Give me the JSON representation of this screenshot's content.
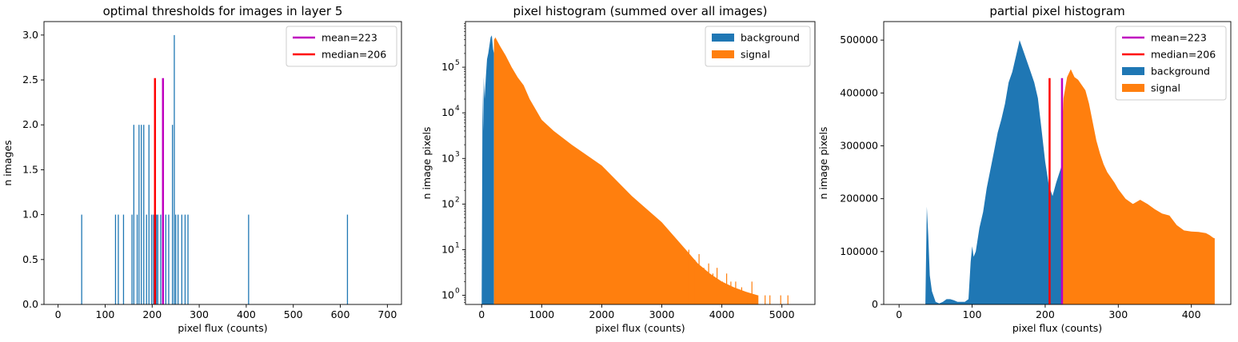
{
  "colors": {
    "background": "#1f77b4",
    "signal": "#ff7f0e",
    "mean": "#bf00bf",
    "median": "#ff0000",
    "axis": "#000000",
    "legend_border": "#cccccc"
  },
  "chart_data": [
    {
      "type": "bar",
      "title": "optimal thresholds for images in layer 5",
      "xlabel": "pixel flux (counts)",
      "ylabel": "n images",
      "xlim": [
        -30,
        730
      ],
      "ylim": [
        0,
        3.15
      ],
      "xticks": [
        0,
        100,
        200,
        300,
        400,
        500,
        600,
        700
      ],
      "yticks": [
        0.0,
        0.5,
        1.0,
        1.5,
        2.0,
        2.5,
        3.0
      ],
      "ytick_labels": [
        "0.0",
        "0.5",
        "1.0",
        "1.5",
        "2.0",
        "2.5",
        "3.0"
      ],
      "bar_color": "#1f77b4",
      "bars": {
        "x": [
          50,
          122,
          128,
          139,
          157,
          161,
          168,
          172,
          177,
          182,
          188,
          193,
          199,
          203,
          209,
          212,
          218,
          223,
          229,
          235,
          243,
          247,
          250,
          255,
          263,
          270,
          276,
          405,
          615
        ],
        "y": [
          1,
          1,
          1,
          1,
          1,
          2,
          1,
          2,
          2,
          2,
          1,
          2,
          1,
          1,
          1,
          1,
          1,
          1,
          1,
          1,
          2,
          3,
          1,
          1,
          1,
          1,
          1,
          1,
          1
        ]
      },
      "vlines": [
        {
          "name": "mean=223",
          "x": 223,
          "ymax": 2.52,
          "color": "#bf00bf"
        },
        {
          "name": "median=206",
          "x": 206,
          "ymax": 2.52,
          "color": "#ff0000"
        }
      ],
      "legend": {
        "position": "top-right",
        "entries": [
          {
            "label": "mean=223",
            "kind": "line",
            "color": "#bf00bf"
          },
          {
            "label": "median=206",
            "kind": "line",
            "color": "#ff0000"
          }
        ]
      }
    },
    {
      "type": "area",
      "title": "pixel histogram (summed over all images)",
      "xlabel": "pixel flux (counts)",
      "ylabel": "n image pixels",
      "xlim": [
        -270,
        5550
      ],
      "ylim_log10": [
        -0.2,
        6.0
      ],
      "yscale": "log",
      "xticks": [
        0,
        1000,
        2000,
        3000,
        4000,
        5000
      ],
      "yticks_log10": [
        0,
        1,
        2,
        3,
        4,
        5
      ],
      "ytick_labels": [
        "10",
        "10",
        "10",
        "10",
        "10",
        "10"
      ],
      "ytick_exponents": [
        "0",
        "1",
        "2",
        "3",
        "4",
        "5"
      ],
      "series": [
        {
          "name": "background",
          "color": "#1f77b4",
          "x": [
            0,
            15,
            25,
            35,
            50,
            70,
            90,
            110,
            130,
            150,
            170,
            190,
            206
          ],
          "y": [
            1,
            30000,
            4000,
            60000,
            20000,
            60000,
            150000,
            200000,
            300000,
            450000,
            500000,
            250000,
            200000
          ]
        },
        {
          "name": "signal",
          "color": "#ff7f0e",
          "x": [
            206,
            230,
            250,
            300,
            400,
            500,
            600,
            700,
            800,
            1000,
            1200,
            1500,
            2000,
            2500,
            3000,
            3200,
            3400,
            3600,
            3800,
            4000,
            4200,
            4400,
            4600
          ],
          "y": [
            400000,
            450000,
            400000,
            300000,
            180000,
            100000,
            60000,
            40000,
            20000,
            7000,
            4000,
            2000,
            700,
            150,
            40,
            20,
            10,
            5,
            3,
            2,
            1.5,
            1.2,
            1
          ]
        }
      ],
      "sparse_bins": {
        "color": "#ff7f0e",
        "x": [
          3450,
          3550,
          3620,
          3700,
          3780,
          3850,
          3920,
          4010,
          4080,
          4150,
          4230,
          4330,
          4420,
          4500,
          4600,
          4720,
          4800,
          4980,
          5100
        ],
        "y": [
          10,
          6,
          8,
          4,
          5,
          3,
          4,
          2,
          3,
          2,
          2,
          1.5,
          1,
          2,
          1,
          1,
          1,
          1,
          1
        ]
      },
      "legend": {
        "position": "top-right",
        "entries": [
          {
            "label": "background",
            "kind": "patch",
            "color": "#1f77b4"
          },
          {
            "label": "signal",
            "kind": "patch",
            "color": "#ff7f0e"
          }
        ]
      }
    },
    {
      "type": "area",
      "title": "partial pixel histogram",
      "xlabel": "pixel flux (counts)",
      "ylabel": "n image pixels",
      "xlim": [
        -21,
        454
      ],
      "ylim": [
        0,
        535000
      ],
      "xticks": [
        0,
        100,
        200,
        300,
        400
      ],
      "yticks": [
        0,
        100000,
        200000,
        300000,
        400000,
        500000
      ],
      "ytick_labels": [
        "0",
        "100000",
        "200000",
        "300000",
        "400000",
        "500000"
      ],
      "series": [
        {
          "name": "background",
          "color": "#1f77b4",
          "x": [
            36,
            38,
            40,
            42,
            45,
            50,
            55,
            60,
            65,
            70,
            75,
            80,
            85,
            90,
            95,
            98,
            100,
            102,
            105,
            110,
            115,
            120,
            125,
            130,
            135,
            140,
            145,
            150,
            155,
            160,
            165,
            170,
            175,
            180,
            185,
            190,
            195,
            200,
            205,
            210,
            215,
            222
          ],
          "y": [
            0,
            185000,
            130000,
            55000,
            25000,
            5000,
            2000,
            5000,
            10000,
            10000,
            8000,
            5000,
            5000,
            5000,
            10000,
            80000,
            110000,
            90000,
            100000,
            145000,
            175000,
            220000,
            255000,
            290000,
            325000,
            350000,
            380000,
            420000,
            440000,
            470000,
            500000,
            480000,
            460000,
            440000,
            420000,
            390000,
            330000,
            270000,
            225000,
            205000,
            230000,
            260000
          ]
        },
        {
          "name": "signal",
          "color": "#ff7f0e",
          "x": [
            222,
            225,
            230,
            235,
            240,
            245,
            250,
            255,
            260,
            265,
            270,
            275,
            280,
            285,
            290,
            295,
            300,
            310,
            320,
            330,
            340,
            350,
            360,
            370,
            380,
            390,
            400,
            410,
            420,
            425,
            430,
            432
          ],
          "y": [
            300000,
            390000,
            430000,
            445000,
            430000,
            425000,
            415000,
            405000,
            380000,
            345000,
            310000,
            285000,
            265000,
            250000,
            240000,
            230000,
            218000,
            200000,
            190000,
            198000,
            190000,
            180000,
            172000,
            168000,
            150000,
            140000,
            138000,
            137000,
            135000,
            131000,
            126000,
            125000
          ]
        }
      ],
      "vlines": [
        {
          "name": "mean=223",
          "x": 223,
          "ymax": 428000,
          "color": "#bf00bf"
        },
        {
          "name": "median=206",
          "x": 206,
          "ymax": 428000,
          "color": "#ff0000"
        }
      ],
      "legend": {
        "position": "top-right",
        "entries": [
          {
            "label": "mean=223",
            "kind": "line",
            "color": "#bf00bf"
          },
          {
            "label": "median=206",
            "kind": "line",
            "color": "#ff0000"
          },
          {
            "label": "background",
            "kind": "patch",
            "color": "#1f77b4"
          },
          {
            "label": "signal",
            "kind": "patch",
            "color": "#ff7f0e"
          }
        ]
      }
    }
  ]
}
